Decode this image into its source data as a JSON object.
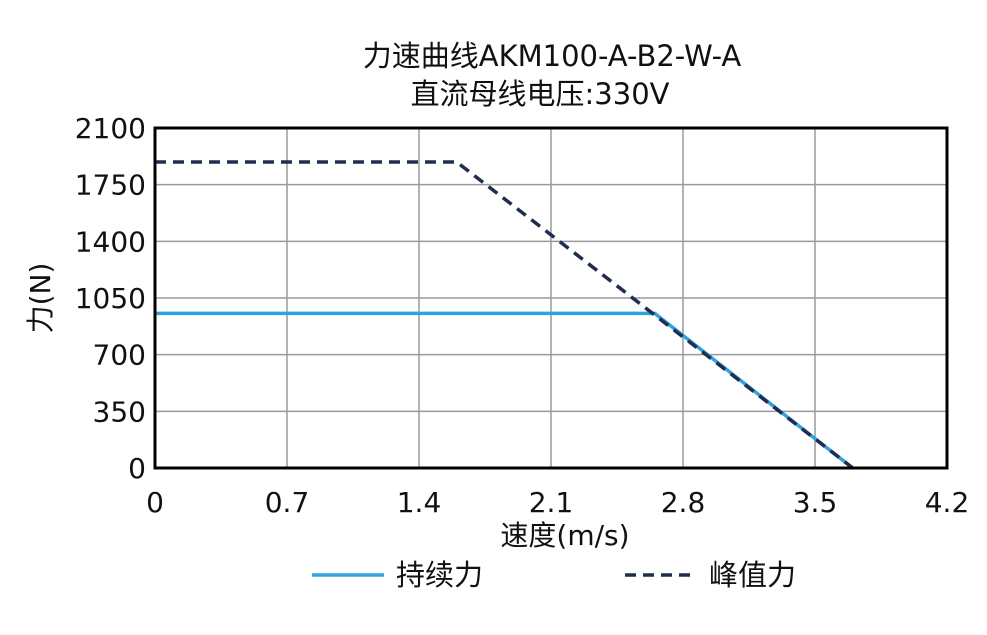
{
  "chart_data": {
    "type": "line",
    "title_line1": "力速曲线AKM100-A-B2-W-A",
    "title_line2": "直流母线电压:330V",
    "xlabel": "速度(m/s)",
    "ylabel": "力(N)",
    "xlim": [
      0,
      4.2
    ],
    "ylim": [
      0,
      2100
    ],
    "x_ticks": [
      "0",
      "0.7",
      "1.4",
      "2.1",
      "2.8",
      "3.5",
      "4.2"
    ],
    "y_ticks": [
      "0",
      "350",
      "700",
      "1050",
      "1400",
      "1750",
      "2100"
    ],
    "grid": true,
    "legend_position": "bottom",
    "series": [
      {
        "name": "持续力",
        "color": "#2ea3de",
        "style": "solid",
        "points": [
          [
            0,
            955
          ],
          [
            2.65,
            955
          ],
          [
            3.7,
            0
          ]
        ]
      },
      {
        "name": "峰值力",
        "color": "#1f2d4f",
        "style": "dashed",
        "points": [
          [
            0,
            1890
          ],
          [
            1.6,
            1890
          ],
          [
            3.7,
            0
          ]
        ]
      }
    ]
  }
}
